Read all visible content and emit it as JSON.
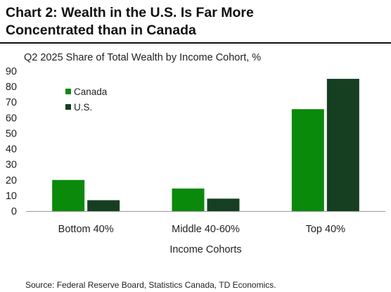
{
  "header": {
    "title_line1": "Chart 2: Wealth in the U.S. Is Far More",
    "title_line2": "Concentrated than in Canada"
  },
  "chart_data": {
    "type": "bar",
    "subtitle": "Q2 2025 Share of Total Wealth by Income Cohort, %",
    "xlabel": "Income Cohorts",
    "ylabel": "",
    "ylim": [
      0,
      90
    ],
    "yticks": [
      0,
      10,
      20,
      30,
      40,
      50,
      60,
      70,
      80,
      90
    ],
    "categories": [
      "Bottom 40%",
      "Middle 40-60%",
      "Top 40%"
    ],
    "series": [
      {
        "name": "Canada",
        "color": "#0a8a0a",
        "values": [
          20,
          14.5,
          65.5
        ]
      },
      {
        "name": "U.S.",
        "color": "#163f22",
        "values": [
          7,
          8,
          85
        ]
      }
    ],
    "legend_position": "top-left",
    "grid": false
  },
  "footer": {
    "source": "Source: Federal Reserve Board, Statistics Canada, TD Economics."
  }
}
